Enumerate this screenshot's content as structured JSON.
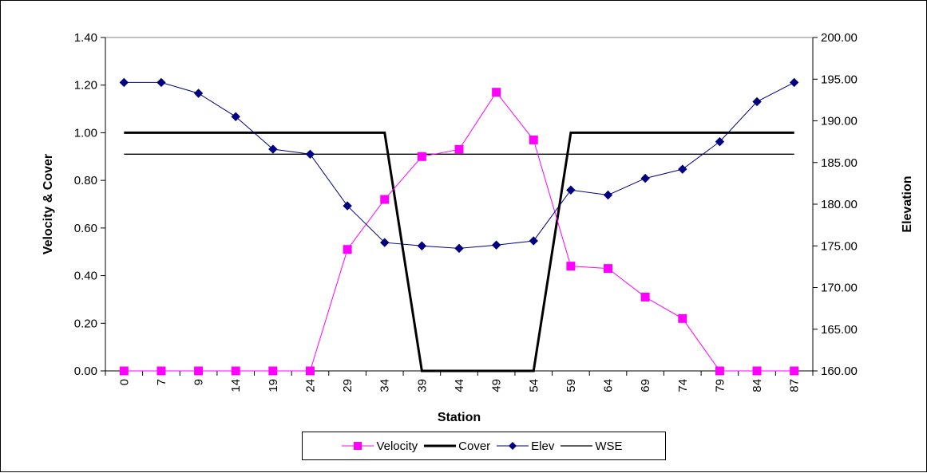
{
  "chart_data": {
    "type": "line",
    "xlabel": "Station",
    "ylabel": "Velocity & Cover",
    "y2label": "Elevation",
    "ylim": [
      0,
      1.4
    ],
    "y2lim": [
      160,
      200
    ],
    "yticks": [
      "0.00",
      "0.20",
      "0.40",
      "0.60",
      "0.80",
      "1.00",
      "1.20",
      "1.40"
    ],
    "y2ticks": [
      "160.00",
      "165.00",
      "170.00",
      "175.00",
      "180.00",
      "185.00",
      "190.00",
      "195.00",
      "200.00"
    ],
    "categories": [
      "0",
      "7",
      "9",
      "14",
      "19",
      "24",
      "29",
      "34",
      "39",
      "44",
      "49",
      "54",
      "59",
      "64",
      "69",
      "74",
      "79",
      "84",
      "87"
    ],
    "grid": false,
    "legend_position": "bottom",
    "series": [
      {
        "name": "Velocity",
        "axis": "left",
        "color": "#ff00ff",
        "marker": "square",
        "line_width": 1,
        "values": [
          0,
          0,
          0,
          0,
          0,
          0,
          0.51,
          0.72,
          0.9,
          0.93,
          1.17,
          0.97,
          0.44,
          0.43,
          0.31,
          0.22,
          0,
          0,
          0
        ]
      },
      {
        "name": "Cover",
        "axis": "left",
        "color": "#000000",
        "marker": "none",
        "line_width": 3,
        "values": [
          1.0,
          1.0,
          1.0,
          1.0,
          1.0,
          1.0,
          1.0,
          1.0,
          0,
          0,
          0,
          0,
          1.0,
          1.0,
          1.0,
          1.0,
          1.0,
          1.0,
          1.0
        ]
      },
      {
        "name": "Elev",
        "axis": "right",
        "color": "#000080",
        "marker": "diamond",
        "line_width": 1,
        "values": [
          194.6,
          194.6,
          193.3,
          190.5,
          186.6,
          186.0,
          179.8,
          175.4,
          175.0,
          174.7,
          175.1,
          175.6,
          181.7,
          181.1,
          183.1,
          184.2,
          187.5,
          192.3,
          194.6
        ]
      },
      {
        "name": "WSE",
        "axis": "left",
        "color": "#000000",
        "marker": "none",
        "line_width": 1.3,
        "values": [
          0.91,
          0.91,
          0.91,
          0.91,
          0.91,
          0.91,
          0.91,
          0.91,
          0.91,
          0.91,
          0.91,
          0.91,
          0.91,
          0.91,
          0.91,
          0.91,
          0.91,
          0.91,
          0.91
        ]
      }
    ]
  }
}
